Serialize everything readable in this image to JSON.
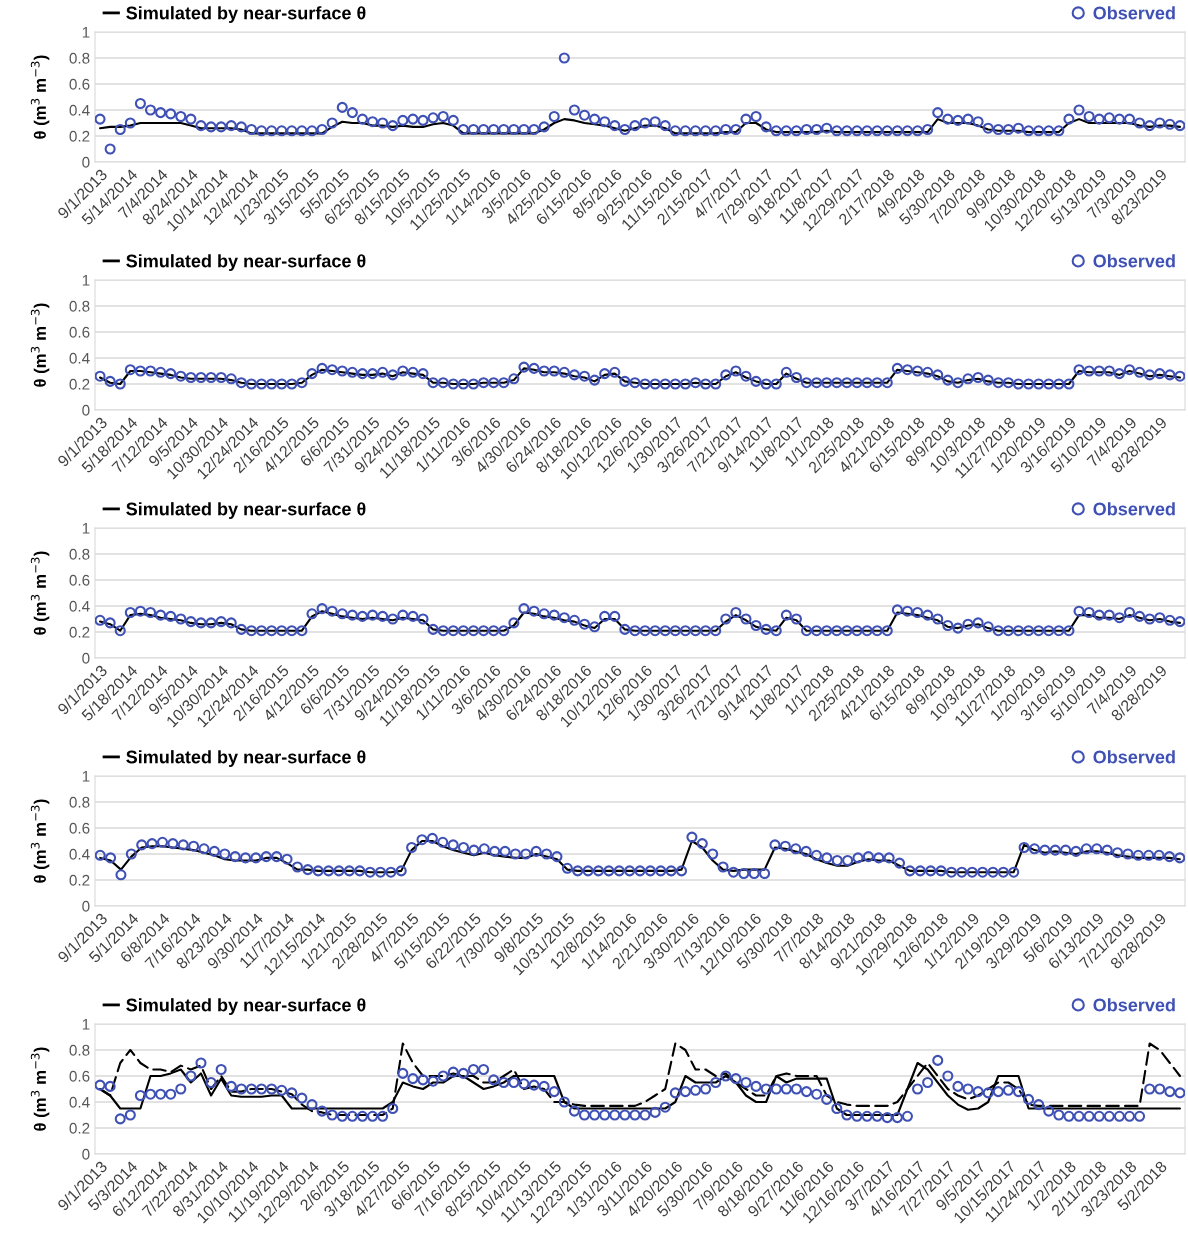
{
  "chart_data": [
    {
      "type": "line",
      "ylabel": "θ (m$^{3}$ m$^{−3}$)",
      "ylim": [
        0,
        1
      ],
      "yticks": [
        0,
        0.2,
        0.4,
        0.6,
        0.8,
        1
      ],
      "grid": "y",
      "legend": "top",
      "categories": [
        "9/1/2013",
        null,
        null,
        "5/14/2014",
        null,
        null,
        "7/4/2014",
        null,
        null,
        "8/24/2014",
        null,
        null,
        "10/14/2014",
        null,
        null,
        "12/4/2014",
        null,
        null,
        "1/23/2015",
        null,
        null,
        "3/15/2015",
        null,
        null,
        "5/5/2015",
        null,
        null,
        "6/25/2015",
        null,
        null,
        "8/15/2015",
        null,
        null,
        "10/5/2015",
        null,
        null,
        "11/25/2015",
        null,
        null,
        "1/14/2016",
        null,
        null,
        "3/5/2016",
        null,
        null,
        "4/25/2016",
        null,
        null,
        "6/15/2016",
        null,
        null,
        "8/5/2016",
        null,
        null,
        "9/25/2016",
        null,
        null,
        "11/15/2016",
        null,
        null,
        "2/15/2017",
        null,
        null,
        "4/7/2017",
        null,
        null,
        "7/29/2017",
        null,
        null,
        "9/18/2017",
        null,
        null,
        "11/8/2017",
        null,
        null,
        "12/29/2017",
        null,
        null,
        "2/17/2018",
        null,
        null,
        "4/9/2018",
        null,
        null,
        "5/30/2018",
        null,
        null,
        "7/20/2018",
        null,
        null,
        "9/9/2018",
        null,
        null,
        "10/30/2018",
        null,
        null,
        "12/20/2018",
        null,
        null,
        "5/13/2019",
        null,
        null,
        "7/3/2019",
        null,
        null,
        "8/23/2019",
        null,
        null
      ],
      "series": [
        {
          "name": "Simulated by near-surface θ",
          "type": "line",
          "color": "#000000",
          "marker": "none",
          "line_style": "solid",
          "values": [
            0.26,
            0.27,
            0.27,
            0.28,
            0.3,
            0.3,
            0.3,
            0.3,
            0.3,
            0.28,
            0.26,
            0.26,
            0.26,
            0.26,
            0.25,
            0.22,
            0.22,
            0.22,
            0.22,
            0.22,
            0.22,
            0.22,
            0.22,
            0.27,
            0.31,
            0.3,
            0.3,
            0.28,
            0.28,
            0.27,
            0.28,
            0.27,
            0.27,
            0.29,
            0.3,
            0.28,
            0.22,
            0.22,
            0.22,
            0.22,
            0.22,
            0.22,
            0.22,
            0.22,
            0.25,
            0.3,
            0.33,
            0.32,
            0.3,
            0.29,
            0.28,
            0.26,
            0.24,
            0.26,
            0.28,
            0.28,
            0.26,
            0.22,
            0.22,
            0.22,
            0.22,
            0.22,
            0.23,
            0.23,
            0.3,
            0.3,
            0.25,
            0.23,
            0.23,
            0.23,
            0.23,
            0.23,
            0.24,
            0.23,
            0.23,
            0.23,
            0.23,
            0.23,
            0.23,
            0.23,
            0.23,
            0.23,
            0.23,
            0.33,
            0.3,
            0.3,
            0.3,
            0.28,
            0.25,
            0.24,
            0.24,
            0.24,
            0.23,
            0.23,
            0.23,
            0.23,
            0.3,
            0.33,
            0.3,
            0.3,
            0.3,
            0.3,
            0.3,
            0.28,
            0.27,
            0.28,
            0.28,
            0.27
          ]
        },
        {
          "name": "Observed",
          "type": "scatter",
          "color": "#3f51b5",
          "marker": "circle",
          "values": [
            0.33,
            0.1,
            0.25,
            0.3,
            0.45,
            0.4,
            0.38,
            0.37,
            0.35,
            0.33,
            0.28,
            0.27,
            0.27,
            0.28,
            0.27,
            0.25,
            0.24,
            0.24,
            0.24,
            0.24,
            0.24,
            0.24,
            0.25,
            0.3,
            0.42,
            0.38,
            0.33,
            0.31,
            0.3,
            0.28,
            0.32,
            0.33,
            0.32,
            0.34,
            0.35,
            0.32,
            0.25,
            0.25,
            0.25,
            0.25,
            0.25,
            0.25,
            0.25,
            0.25,
            0.27,
            0.35,
            0.8,
            0.4,
            0.36,
            0.33,
            0.31,
            0.28,
            0.25,
            0.28,
            0.3,
            0.31,
            0.28,
            0.24,
            0.24,
            0.24,
            0.24,
            0.24,
            0.25,
            0.25,
            0.33,
            0.35,
            0.27,
            0.24,
            0.24,
            0.24,
            0.25,
            0.25,
            0.26,
            0.24,
            0.24,
            0.24,
            0.24,
            0.24,
            0.24,
            0.24,
            0.24,
            0.24,
            0.25,
            0.38,
            0.33,
            0.32,
            0.33,
            0.31,
            0.26,
            0.25,
            0.25,
            0.26,
            0.24,
            0.24,
            0.24,
            0.24,
            0.33,
            0.4,
            0.35,
            0.33,
            0.34,
            0.33,
            0.33,
            0.3,
            0.28,
            0.3,
            0.29,
            0.28
          ]
        }
      ]
    },
    {
      "type": "line",
      "ylabel": "θ (m$^{3}$ m$^{−3}$)",
      "ylim": [
        0,
        1
      ],
      "yticks": [
        0,
        0.2,
        0.4,
        0.6,
        0.8,
        1
      ],
      "grid": "y",
      "legend": "top",
      "categories": [
        "9/1/2013",
        null,
        null,
        "5/18/2014",
        null,
        null,
        "7/12/2014",
        null,
        null,
        "9/5/2014",
        null,
        null,
        "10/30/2014",
        null,
        null,
        "12/24/2014",
        null,
        null,
        "2/16/2015",
        null,
        null,
        "4/12/2015",
        null,
        null,
        "6/6/2015",
        null,
        null,
        "7/31/2015",
        null,
        null,
        "9/24/2015",
        null,
        null,
        "11/18/2015",
        null,
        null,
        "1/11/2016",
        null,
        null,
        "3/6/2016",
        null,
        null,
        "4/30/2016",
        null,
        null,
        "6/24/2016",
        null,
        null,
        "8/18/2016",
        null,
        null,
        "10/12/2016",
        null,
        null,
        "12/6/2016",
        null,
        null,
        "1/30/2017",
        null,
        null,
        "3/26/2017",
        null,
        null,
        "7/21/2017",
        null,
        null,
        "9/14/2017",
        null,
        null,
        "11/8/2017",
        null,
        null,
        "1/1/2018",
        null,
        null,
        "2/25/2018",
        null,
        null,
        "4/21/2018",
        null,
        null,
        "6/15/2018",
        null,
        null,
        "8/9/2018",
        null,
        null,
        "10/3/2018",
        null,
        null,
        "11/27/2018",
        null,
        null,
        "1/20/2019",
        null,
        null,
        "3/16/2019",
        null,
        null,
        "5/10/2019",
        null,
        null,
        "7/4/2019",
        null,
        null,
        "8/28/2019",
        null,
        null
      ],
      "series": [
        {
          "name": "Simulated by near-surface θ",
          "type": "line",
          "color": "#000000",
          "marker": "none",
          "line_style": "solid",
          "values": [
            0.25,
            0.21,
            0.2,
            0.3,
            0.3,
            0.29,
            0.28,
            0.27,
            0.25,
            0.24,
            0.24,
            0.24,
            0.24,
            0.23,
            0.21,
            0.2,
            0.2,
            0.2,
            0.2,
            0.2,
            0.21,
            0.27,
            0.31,
            0.3,
            0.29,
            0.28,
            0.27,
            0.27,
            0.28,
            0.26,
            0.29,
            0.28,
            0.27,
            0.21,
            0.21,
            0.2,
            0.2,
            0.2,
            0.21,
            0.21,
            0.21,
            0.23,
            0.32,
            0.31,
            0.29,
            0.29,
            0.28,
            0.26,
            0.25,
            0.22,
            0.27,
            0.28,
            0.22,
            0.21,
            0.2,
            0.2,
            0.2,
            0.2,
            0.2,
            0.21,
            0.2,
            0.2,
            0.26,
            0.29,
            0.25,
            0.22,
            0.2,
            0.2,
            0.28,
            0.24,
            0.21,
            0.21,
            0.21,
            0.21,
            0.21,
            0.21,
            0.21,
            0.21,
            0.21,
            0.31,
            0.3,
            0.29,
            0.28,
            0.26,
            0.22,
            0.21,
            0.23,
            0.24,
            0.22,
            0.21,
            0.21,
            0.2,
            0.2,
            0.2,
            0.2,
            0.2,
            0.2,
            0.3,
            0.29,
            0.29,
            0.29,
            0.27,
            0.3,
            0.28,
            0.26,
            0.27,
            0.26,
            0.25
          ]
        },
        {
          "name": "Observed",
          "type": "scatter",
          "color": "#3f51b5",
          "marker": "circle",
          "values": [
            0.26,
            0.22,
            0.2,
            0.31,
            0.3,
            0.3,
            0.29,
            0.28,
            0.26,
            0.25,
            0.25,
            0.25,
            0.25,
            0.24,
            0.21,
            0.2,
            0.2,
            0.2,
            0.2,
            0.2,
            0.21,
            0.28,
            0.32,
            0.31,
            0.3,
            0.29,
            0.28,
            0.28,
            0.29,
            0.27,
            0.3,
            0.29,
            0.28,
            0.21,
            0.21,
            0.2,
            0.2,
            0.2,
            0.21,
            0.21,
            0.21,
            0.24,
            0.33,
            0.32,
            0.3,
            0.3,
            0.29,
            0.27,
            0.26,
            0.23,
            0.28,
            0.29,
            0.22,
            0.21,
            0.2,
            0.2,
            0.2,
            0.2,
            0.2,
            0.21,
            0.2,
            0.2,
            0.27,
            0.3,
            0.26,
            0.22,
            0.2,
            0.2,
            0.29,
            0.25,
            0.21,
            0.21,
            0.21,
            0.21,
            0.21,
            0.21,
            0.21,
            0.21,
            0.21,
            0.32,
            0.31,
            0.3,
            0.29,
            0.27,
            0.23,
            0.21,
            0.24,
            0.25,
            0.23,
            0.21,
            0.21,
            0.2,
            0.2,
            0.2,
            0.2,
            0.2,
            0.2,
            0.31,
            0.3,
            0.3,
            0.3,
            0.28,
            0.31,
            0.29,
            0.27,
            0.28,
            0.27,
            0.26
          ]
        }
      ]
    },
    {
      "type": "line",
      "ylabel": "θ (m$^{3}$ m$^{−3}$)",
      "ylim": [
        0,
        1
      ],
      "yticks": [
        0,
        0.2,
        0.4,
        0.6,
        0.8,
        1
      ],
      "grid": "y",
      "legend": "top",
      "categories": [
        "9/1/2013",
        null,
        null,
        "5/18/2014",
        null,
        null,
        "7/12/2014",
        null,
        null,
        "9/5/2014",
        null,
        null,
        "10/30/2014",
        null,
        null,
        "12/24/2014",
        null,
        null,
        "2/16/2015",
        null,
        null,
        "4/12/2015",
        null,
        null,
        "6/6/2015",
        null,
        null,
        "7/31/2015",
        null,
        null,
        "9/24/2015",
        null,
        null,
        "11/18/2015",
        null,
        null,
        "1/11/2016",
        null,
        null,
        "3/6/2016",
        null,
        null,
        "4/30/2016",
        null,
        null,
        "6/24/2016",
        null,
        null,
        "8/18/2016",
        null,
        null,
        "10/12/2016",
        null,
        null,
        "12/6/2016",
        null,
        null,
        "1/30/2017",
        null,
        null,
        "3/26/2017",
        null,
        null,
        "7/21/2017",
        null,
        null,
        "9/14/2017",
        null,
        null,
        "11/8/2017",
        null,
        null,
        "1/1/2018",
        null,
        null,
        "2/25/2018",
        null,
        null,
        "4/21/2018",
        null,
        null,
        "6/15/2018",
        null,
        null,
        "8/9/2018",
        null,
        null,
        "10/3/2018",
        null,
        null,
        "11/27/2018",
        null,
        null,
        "1/20/2019",
        null,
        null,
        "3/16/2019",
        null,
        null,
        "5/10/2019",
        null,
        null,
        "7/4/2019",
        null,
        null,
        "8/28/2019",
        null,
        null
      ],
      "series": [
        {
          "name": "Simulated by near-surface θ",
          "type": "line",
          "color": "#000000",
          "marker": "none",
          "line_style": "solid",
          "values": [
            0.28,
            0.26,
            0.21,
            0.33,
            0.34,
            0.33,
            0.31,
            0.3,
            0.29,
            0.27,
            0.26,
            0.26,
            0.27,
            0.26,
            0.22,
            0.21,
            0.21,
            0.21,
            0.21,
            0.21,
            0.21,
            0.32,
            0.36,
            0.34,
            0.32,
            0.31,
            0.3,
            0.31,
            0.3,
            0.29,
            0.31,
            0.3,
            0.29,
            0.22,
            0.21,
            0.21,
            0.21,
            0.21,
            0.21,
            0.21,
            0.21,
            0.25,
            0.35,
            0.34,
            0.32,
            0.31,
            0.29,
            0.28,
            0.25,
            0.23,
            0.3,
            0.3,
            0.22,
            0.21,
            0.21,
            0.21,
            0.21,
            0.21,
            0.21,
            0.21,
            0.21,
            0.21,
            0.28,
            0.33,
            0.29,
            0.24,
            0.22,
            0.21,
            0.31,
            0.29,
            0.21,
            0.21,
            0.21,
            0.21,
            0.21,
            0.21,
            0.21,
            0.21,
            0.21,
            0.35,
            0.34,
            0.33,
            0.31,
            0.29,
            0.24,
            0.23,
            0.25,
            0.26,
            0.23,
            0.21,
            0.21,
            0.21,
            0.21,
            0.21,
            0.21,
            0.21,
            0.21,
            0.33,
            0.33,
            0.31,
            0.31,
            0.3,
            0.33,
            0.31,
            0.29,
            0.3,
            0.28,
            0.27
          ]
        },
        {
          "name": "Observed",
          "type": "scatter",
          "color": "#3f51b5",
          "marker": "circle",
          "values": [
            0.29,
            0.27,
            0.21,
            0.35,
            0.36,
            0.35,
            0.33,
            0.32,
            0.3,
            0.28,
            0.27,
            0.27,
            0.28,
            0.27,
            0.22,
            0.21,
            0.21,
            0.21,
            0.21,
            0.21,
            0.21,
            0.34,
            0.38,
            0.36,
            0.34,
            0.33,
            0.32,
            0.33,
            0.32,
            0.3,
            0.33,
            0.32,
            0.3,
            0.22,
            0.21,
            0.21,
            0.21,
            0.21,
            0.21,
            0.21,
            0.21,
            0.27,
            0.38,
            0.36,
            0.34,
            0.33,
            0.31,
            0.29,
            0.26,
            0.24,
            0.32,
            0.32,
            0.22,
            0.21,
            0.21,
            0.21,
            0.21,
            0.21,
            0.21,
            0.21,
            0.21,
            0.21,
            0.3,
            0.35,
            0.3,
            0.25,
            0.22,
            0.21,
            0.33,
            0.3,
            0.21,
            0.21,
            0.21,
            0.21,
            0.21,
            0.21,
            0.21,
            0.21,
            0.21,
            0.37,
            0.36,
            0.35,
            0.33,
            0.3,
            0.25,
            0.23,
            0.26,
            0.27,
            0.24,
            0.21,
            0.21,
            0.21,
            0.21,
            0.21,
            0.21,
            0.21,
            0.21,
            0.36,
            0.35,
            0.33,
            0.33,
            0.31,
            0.35,
            0.32,
            0.3,
            0.31,
            0.29,
            0.28
          ]
        }
      ]
    },
    {
      "type": "line",
      "ylabel": "θ (m$^{3}$ m$^{−3}$)",
      "ylim": [
        0,
        1
      ],
      "yticks": [
        0,
        0.2,
        0.4,
        0.6,
        0.8,
        1
      ],
      "grid": "y",
      "legend": "top",
      "categories": [
        "9/1/2013",
        null,
        null,
        "5/1/2014",
        null,
        null,
        "6/8/2014",
        null,
        null,
        "7/16/2014",
        null,
        null,
        "8/23/2014",
        null,
        null,
        "9/30/2014",
        null,
        null,
        "11/7/2014",
        null,
        null,
        "12/15/2014",
        null,
        null,
        "1/21/2015",
        null,
        null,
        "2/28/2015",
        null,
        null,
        "4/7/2015",
        null,
        null,
        "5/15/2015",
        null,
        null,
        "6/22/2015",
        null,
        null,
        "7/30/2015",
        null,
        null,
        "9/8/2015",
        null,
        null,
        "10/31/2015",
        null,
        null,
        "12/8/2015",
        null,
        null,
        "1/14/2016",
        null,
        null,
        "2/21/2016",
        null,
        null,
        "3/30/2016",
        null,
        null,
        "7/13/2016",
        null,
        null,
        "12/10/2016",
        null,
        null,
        "5/30/2018",
        null,
        null,
        "7/7/2018",
        null,
        null,
        "8/14/2018",
        null,
        null,
        "9/21/2018",
        null,
        null,
        "10/29/2018",
        null,
        null,
        "12/6/2018",
        null,
        null,
        "1/12/2019",
        null,
        null,
        "2/19/2019",
        null,
        null,
        "3/29/2019",
        null,
        null,
        "5/6/2019",
        null,
        null,
        "6/13/2019",
        null,
        null,
        "7/21/2019",
        null,
        null,
        "8/28/2019",
        null,
        null
      ],
      "series": [
        {
          "name": "Simulated by near-surface θ",
          "type": "line",
          "color": "#000000",
          "marker": "none",
          "line_style": "solid",
          "values": [
            0.37,
            0.35,
            0.28,
            0.38,
            0.45,
            0.46,
            0.46,
            0.45,
            0.44,
            0.43,
            0.41,
            0.39,
            0.36,
            0.35,
            0.35,
            0.35,
            0.37,
            0.37,
            0.33,
            0.28,
            0.28,
            0.27,
            0.27,
            0.27,
            0.27,
            0.27,
            0.26,
            0.26,
            0.26,
            0.27,
            0.43,
            0.5,
            0.5,
            0.46,
            0.43,
            0.41,
            0.39,
            0.41,
            0.39,
            0.38,
            0.37,
            0.37,
            0.4,
            0.38,
            0.36,
            0.28,
            0.27,
            0.27,
            0.27,
            0.27,
            0.27,
            0.27,
            0.27,
            0.27,
            0.27,
            0.27,
            0.28,
            0.5,
            0.45,
            0.35,
            0.28,
            0.27,
            0.28,
            0.28,
            0.28,
            0.45,
            0.44,
            0.42,
            0.4,
            0.36,
            0.33,
            0.31,
            0.31,
            0.34,
            0.36,
            0.35,
            0.35,
            0.31,
            0.27,
            0.27,
            0.27,
            0.27,
            0.26,
            0.26,
            0.26,
            0.26,
            0.26,
            0.26,
            0.26,
            0.47,
            0.43,
            0.41,
            0.42,
            0.41,
            0.4,
            0.42,
            0.42,
            0.41,
            0.39,
            0.38,
            0.37,
            0.37,
            0.37,
            0.37,
            0.36
          ]
        },
        {
          "name": "Observed",
          "type": "scatter",
          "color": "#3f51b5",
          "marker": "circle",
          "values": [
            0.39,
            0.37,
            0.24,
            0.4,
            0.47,
            0.48,
            0.49,
            0.48,
            0.47,
            0.46,
            0.44,
            0.42,
            0.4,
            0.38,
            0.37,
            0.37,
            0.38,
            0.38,
            0.36,
            0.3,
            0.28,
            0.27,
            0.27,
            0.27,
            0.27,
            0.27,
            0.26,
            0.26,
            0.26,
            0.27,
            0.45,
            0.51,
            0.52,
            0.49,
            0.47,
            0.45,
            0.43,
            0.44,
            0.42,
            0.42,
            0.4,
            0.4,
            0.42,
            0.4,
            0.38,
            0.29,
            0.27,
            0.27,
            0.27,
            0.27,
            0.27,
            0.27,
            0.27,
            0.27,
            0.27,
            0.27,
            0.27,
            0.53,
            0.48,
            0.4,
            0.3,
            0.26,
            0.25,
            0.25,
            0.25,
            0.47,
            0.46,
            0.44,
            0.42,
            0.39,
            0.37,
            0.35,
            0.35,
            0.37,
            0.38,
            0.37,
            0.37,
            0.33,
            0.27,
            0.27,
            0.27,
            0.27,
            0.26,
            0.26,
            0.26,
            0.26,
            0.26,
            0.26,
            0.26,
            0.45,
            0.44,
            0.43,
            0.43,
            0.43,
            0.42,
            0.44,
            0.44,
            0.43,
            0.41,
            0.4,
            0.39,
            0.39,
            0.39,
            0.38,
            0.37
          ]
        }
      ]
    },
    {
      "type": "line",
      "ylabel": "θ (m$^{3}$ m$^{−3}$)",
      "ylim": [
        0,
        1
      ],
      "yticks": [
        0,
        0.2,
        0.4,
        0.6,
        0.8,
        1
      ],
      "grid": "y",
      "legend": "top",
      "categories": [
        "9/1/2013",
        null,
        null,
        "5/3/2014",
        null,
        null,
        "6/12/2014",
        null,
        null,
        "7/22/2014",
        null,
        null,
        "8/31/2014",
        null,
        null,
        "10/10/2014",
        null,
        null,
        "11/19/2014",
        null,
        null,
        "12/29/2014",
        null,
        null,
        "2/6/2015",
        null,
        null,
        "3/18/2015",
        null,
        null,
        "4/27/2015",
        null,
        null,
        "6/6/2015",
        null,
        null,
        "7/16/2015",
        null,
        null,
        "8/25/2015",
        null,
        null,
        "10/4/2015",
        null,
        null,
        "11/13/2015",
        null,
        null,
        "12/23/2015",
        null,
        null,
        "1/31/2016",
        null,
        null,
        "3/11/2016",
        null,
        null,
        "4/20/2016",
        null,
        null,
        "5/30/2016",
        null,
        null,
        "7/9/2016",
        null,
        null,
        "8/18/2016",
        null,
        null,
        "9/27/2016",
        null,
        null,
        "11/6/2016",
        null,
        null,
        "12/16/2016",
        null,
        null,
        "3/7/2017",
        null,
        null,
        "4/16/2017",
        null,
        null,
        "7/27/2017",
        null,
        null,
        "9/5/2017",
        null,
        null,
        "10/15/2017",
        null,
        null,
        "11/24/2017",
        null,
        null,
        "1/2/2018",
        null,
        null,
        "2/11/2018",
        null,
        null,
        "3/23/2018",
        null,
        null,
        "5/2/2018",
        null,
        null
      ],
      "series": [
        {
          "name": "Simulated by near-surface θ",
          "type": "line",
          "color": "#000000",
          "marker": "none",
          "line_style": "solid",
          "values": [
            0.5,
            0.45,
            0.35,
            0.35,
            0.35,
            0.6,
            0.6,
            0.62,
            0.65,
            0.55,
            0.62,
            0.45,
            0.58,
            0.45,
            0.44,
            0.44,
            0.44,
            0.45,
            0.45,
            0.35,
            0.35,
            0.35,
            0.35,
            0.35,
            0.35,
            0.35,
            0.35,
            0.35,
            0.35,
            0.4,
            0.55,
            0.52,
            0.5,
            0.55,
            0.55,
            0.6,
            0.6,
            0.55,
            0.5,
            0.52,
            0.55,
            0.6,
            0.6,
            0.6,
            0.6,
            0.6,
            0.4,
            0.35,
            0.35,
            0.35,
            0.35,
            0.35,
            0.35,
            0.35,
            0.35,
            0.35,
            0.35,
            0.4,
            0.6,
            0.55,
            0.55,
            0.55,
            0.6,
            0.55,
            0.45,
            0.4,
            0.4,
            0.6,
            0.55,
            0.58,
            0.58,
            0.58,
            0.58,
            0.35,
            0.3,
            0.3,
            0.3,
            0.3,
            0.3,
            0.3,
            0.5,
            0.7,
            0.65,
            0.55,
            0.45,
            0.38,
            0.34,
            0.35,
            0.4,
            0.6,
            0.6,
            0.6,
            0.35,
            0.35,
            0.35,
            0.35,
            0.35,
            0.35,
            0.35,
            0.35,
            0.35,
            0.35,
            0.35,
            0.35,
            0.35,
            0.35,
            0.35,
            0.35
          ]
        },
        {
          "type": "line",
          "color": "#000000",
          "marker": "none",
          "line_style": "dashed",
          "values": [
            0.5,
            0.45,
            0.7,
            0.8,
            0.7,
            0.65,
            0.65,
            0.63,
            0.68,
            0.65,
            0.68,
            0.5,
            0.6,
            0.48,
            0.48,
            0.5,
            0.5,
            0.5,
            0.48,
            0.46,
            0.38,
            0.33,
            0.32,
            0.3,
            0.3,
            0.3,
            0.3,
            0.3,
            0.3,
            0.35,
            0.85,
            0.7,
            0.6,
            0.6,
            0.6,
            0.62,
            0.6,
            0.6,
            0.55,
            0.55,
            0.6,
            0.65,
            0.5,
            0.52,
            0.5,
            0.4,
            0.4,
            0.38,
            0.37,
            0.37,
            0.37,
            0.37,
            0.37,
            0.37,
            0.4,
            0.45,
            0.5,
            0.85,
            0.8,
            0.65,
            0.65,
            0.6,
            0.62,
            0.55,
            0.5,
            0.45,
            0.45,
            0.6,
            0.62,
            0.6,
            0.6,
            0.6,
            0.45,
            0.4,
            0.38,
            0.37,
            0.37,
            0.37,
            0.37,
            0.4,
            0.5,
            0.6,
            0.7,
            0.6,
            0.5,
            0.45,
            0.42,
            0.45,
            0.5,
            0.55,
            0.55,
            0.5,
            0.38,
            0.37,
            0.37,
            0.37,
            0.37,
            0.37,
            0.37,
            0.37,
            0.37,
            0.37,
            0.37,
            0.37,
            0.85,
            0.8,
            0.7,
            0.6
          ]
        },
        {
          "name": "Observed",
          "type": "scatter",
          "color": "#3f51b5",
          "marker": "circle",
          "values": [
            0.53,
            0.52,
            0.27,
            0.3,
            0.45,
            0.46,
            0.46,
            0.46,
            0.5,
            0.6,
            0.7,
            0.55,
            0.65,
            0.52,
            0.5,
            0.5,
            0.5,
            0.5,
            0.49,
            0.47,
            0.43,
            0.38,
            0.33,
            0.3,
            0.29,
            0.29,
            0.29,
            0.29,
            0.29,
            0.35,
            0.62,
            0.58,
            0.57,
            0.56,
            0.6,
            0.63,
            0.62,
            0.65,
            0.65,
            0.57,
            0.55,
            0.55,
            0.54,
            0.53,
            0.52,
            0.48,
            0.4,
            0.33,
            0.3,
            0.3,
            0.3,
            0.3,
            0.3,
            0.3,
            0.3,
            0.32,
            0.36,
            0.47,
            0.48,
            0.49,
            0.5,
            0.55,
            0.6,
            0.58,
            0.55,
            0.52,
            0.5,
            0.5,
            0.5,
            0.5,
            0.48,
            0.46,
            0.42,
            0.35,
            0.3,
            0.29,
            0.29,
            0.29,
            0.28,
            0.28,
            0.29,
            0.5,
            0.55,
            0.72,
            0.6,
            0.52,
            0.5,
            0.48,
            0.47,
            0.48,
            0.49,
            0.48,
            0.42,
            0.38,
            0.33,
            0.3,
            0.29,
            0.29,
            0.29,
            0.29,
            0.29,
            0.29,
            0.29,
            0.29,
            0.5,
            0.5,
            0.48,
            0.47
          ]
        }
      ]
    }
  ]
}
